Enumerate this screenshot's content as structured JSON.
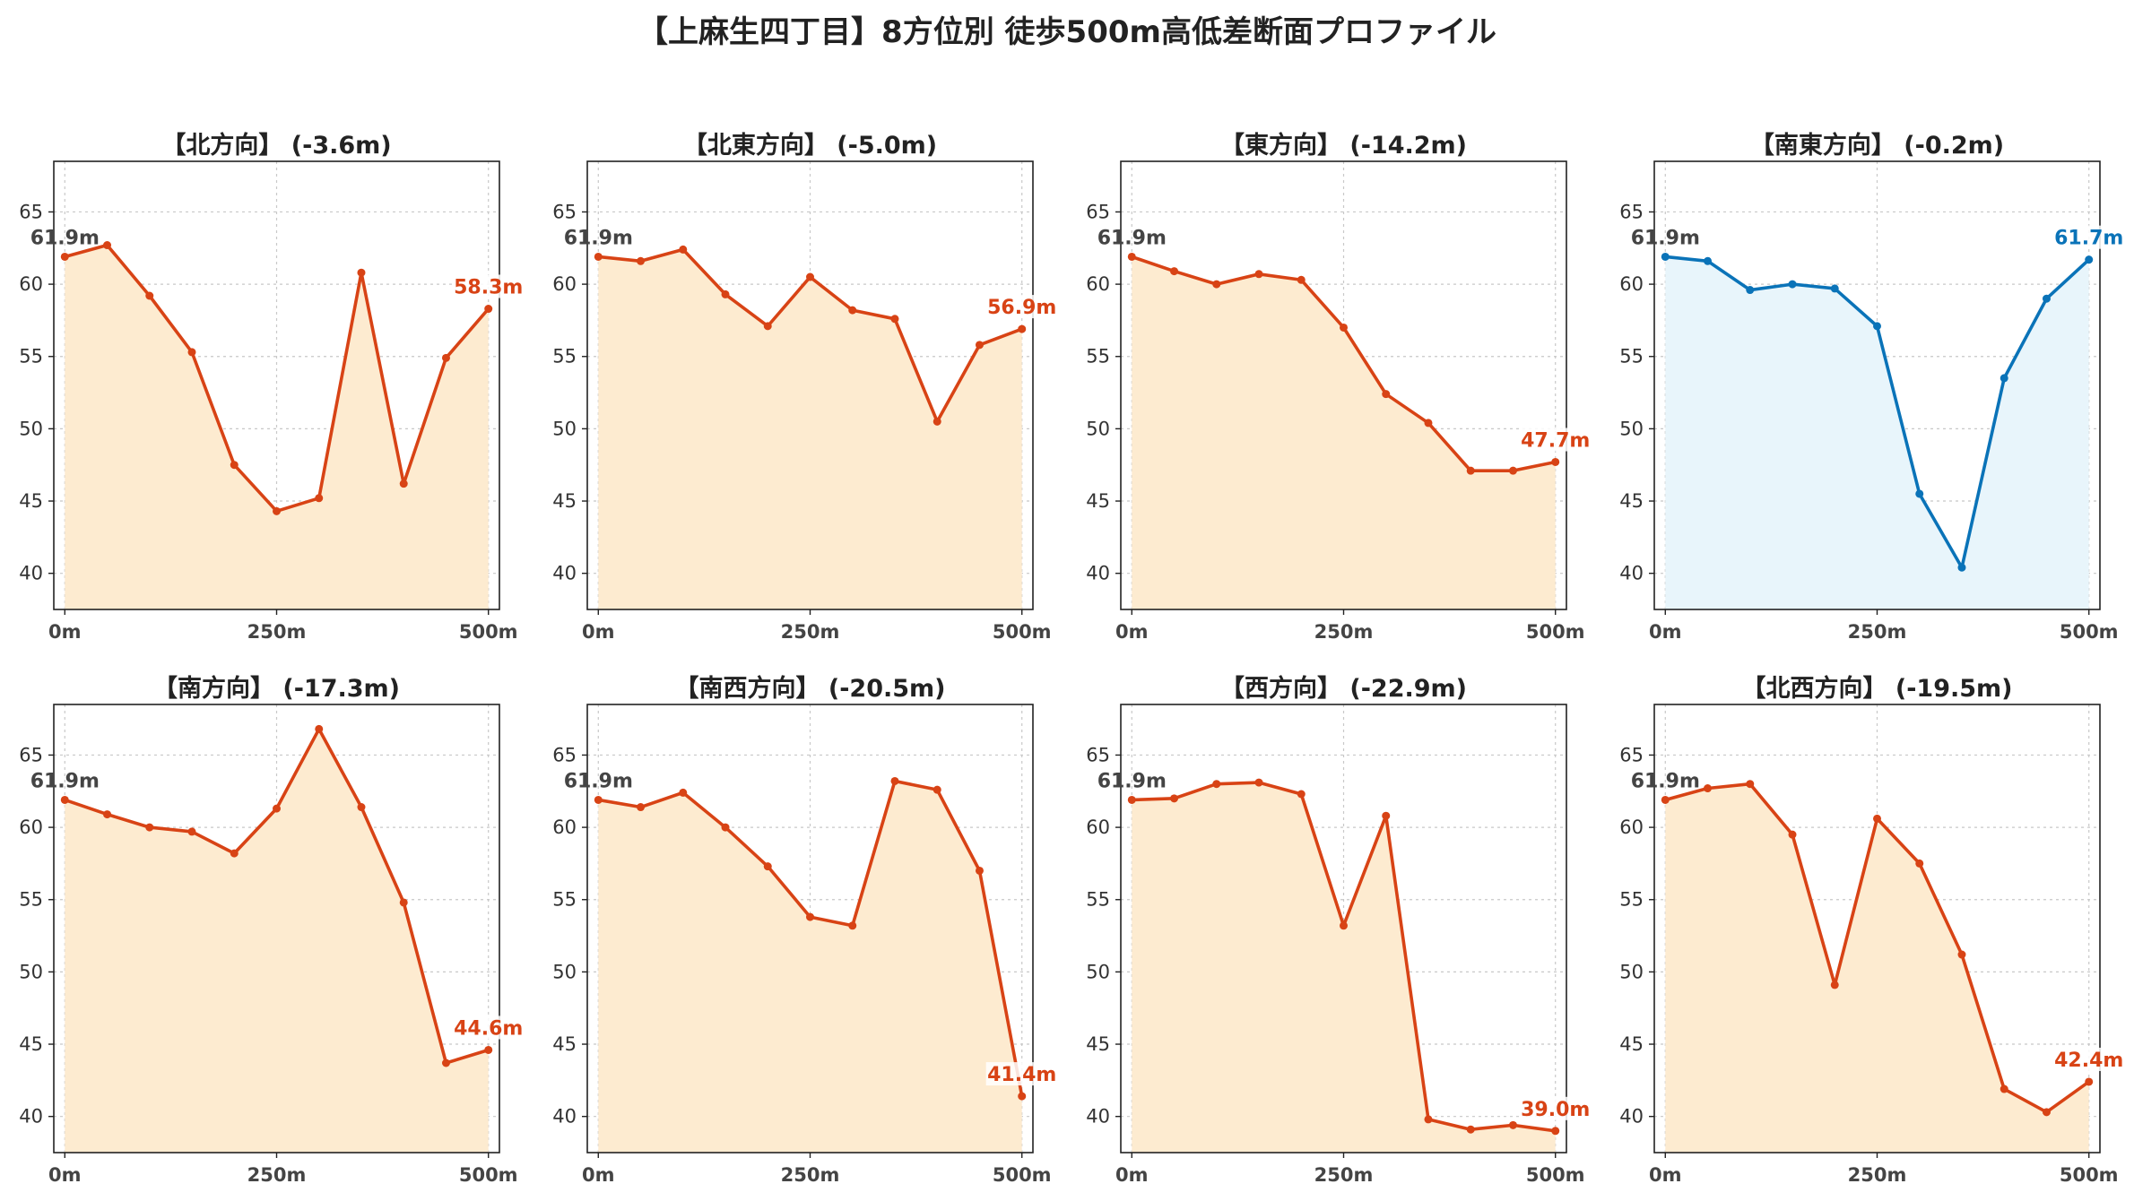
{
  "title": "【上麻生四丁目】8方位別 徒歩500m高低差断面プロファイル",
  "colors": {
    "decline": "#d84315",
    "decline_fill": "#fdebd0",
    "rise": "#0a73b8",
    "rise_fill": "#e8f5fb",
    "start_label": "#444444"
  },
  "chart_data": [
    {
      "type": "line",
      "title": "【北方向】 (-3.6m)",
      "x": [
        0,
        50,
        100,
        150,
        200,
        250,
        300,
        350,
        400,
        450,
        500
      ],
      "values": [
        61.9,
        62.7,
        59.2,
        55.3,
        47.5,
        44.3,
        45.2,
        60.8,
        46.2,
        54.9,
        58.3
      ],
      "start_label": "61.9m",
      "end_label": "58.3m",
      "color": "decline",
      "xticks": [
        "0m",
        "250m",
        "500m"
      ],
      "yticks": [
        40,
        45,
        50,
        55,
        60,
        65
      ],
      "ylim": [
        37.5,
        68.5
      ],
      "grid": true
    },
    {
      "type": "line",
      "title": "【北東方向】 (-5.0m)",
      "x": [
        0,
        50,
        100,
        150,
        200,
        250,
        300,
        350,
        400,
        450,
        500
      ],
      "values": [
        61.9,
        61.6,
        62.4,
        59.3,
        57.1,
        60.5,
        58.2,
        57.6,
        50.5,
        55.8,
        56.9
      ],
      "start_label": "61.9m",
      "end_label": "56.9m",
      "color": "decline",
      "xticks": [
        "0m",
        "250m",
        "500m"
      ],
      "yticks": [
        40,
        45,
        50,
        55,
        60,
        65
      ],
      "ylim": [
        37.5,
        68.5
      ],
      "grid": true
    },
    {
      "type": "line",
      "title": "【東方向】 (-14.2m)",
      "x": [
        0,
        50,
        100,
        150,
        200,
        250,
        300,
        350,
        400,
        450,
        500
      ],
      "values": [
        61.9,
        60.9,
        60.0,
        60.7,
        60.3,
        57.0,
        52.4,
        50.4,
        47.1,
        47.1,
        47.7
      ],
      "start_label": "61.9m",
      "end_label": "47.7m",
      "color": "decline",
      "xticks": [
        "0m",
        "250m",
        "500m"
      ],
      "yticks": [
        40,
        45,
        50,
        55,
        60,
        65
      ],
      "ylim": [
        37.5,
        68.5
      ],
      "grid": true
    },
    {
      "type": "line",
      "title": "【南東方向】 (-0.2m)",
      "x": [
        0,
        50,
        100,
        150,
        200,
        250,
        300,
        350,
        400,
        450,
        500
      ],
      "values": [
        61.9,
        61.6,
        59.6,
        60.0,
        59.7,
        57.1,
        45.5,
        40.4,
        53.5,
        59.0,
        61.7
      ],
      "start_label": "61.9m",
      "end_label": "61.7m",
      "color": "rise",
      "xticks": [
        "0m",
        "250m",
        "500m"
      ],
      "yticks": [
        40,
        45,
        50,
        55,
        60,
        65
      ],
      "ylim": [
        37.5,
        68.5
      ],
      "grid": true
    },
    {
      "type": "line",
      "title": "【南方向】 (-17.3m)",
      "x": [
        0,
        50,
        100,
        150,
        200,
        250,
        300,
        350,
        400,
        450,
        500
      ],
      "values": [
        61.9,
        60.9,
        60.0,
        59.7,
        58.2,
        61.3,
        66.8,
        61.4,
        54.8,
        43.7,
        44.6
      ],
      "start_label": "61.9m",
      "end_label": "44.6m",
      "color": "decline",
      "xticks": [
        "0m",
        "250m",
        "500m"
      ],
      "yticks": [
        40,
        45,
        50,
        55,
        60,
        65
      ],
      "ylim": [
        37.5,
        68.5
      ],
      "grid": true
    },
    {
      "type": "line",
      "title": "【南西方向】 (-20.5m)",
      "x": [
        0,
        50,
        100,
        150,
        200,
        250,
        300,
        350,
        400,
        450,
        500
      ],
      "values": [
        61.9,
        61.4,
        62.4,
        60.0,
        57.3,
        53.8,
        53.2,
        63.2,
        62.6,
        57.0,
        41.4
      ],
      "start_label": "61.9m",
      "end_label": "41.4m",
      "color": "decline",
      "xticks": [
        "0m",
        "250m",
        "500m"
      ],
      "yticks": [
        40,
        45,
        50,
        55,
        60,
        65
      ],
      "ylim": [
        37.5,
        68.5
      ],
      "grid": true
    },
    {
      "type": "line",
      "title": "【西方向】 (-22.9m)",
      "x": [
        0,
        50,
        100,
        150,
        200,
        250,
        300,
        350,
        400,
        450,
        500
      ],
      "values": [
        61.9,
        62.0,
        63.0,
        63.1,
        62.3,
        53.2,
        60.8,
        39.8,
        39.1,
        39.4,
        39.0
      ],
      "start_label": "61.9m",
      "end_label": "39.0m",
      "color": "decline",
      "xticks": [
        "0m",
        "250m",
        "500m"
      ],
      "yticks": [
        40,
        45,
        50,
        55,
        60,
        65
      ],
      "ylim": [
        37.5,
        68.5
      ],
      "grid": true
    },
    {
      "type": "line",
      "title": "【北西方向】 (-19.5m)",
      "x": [
        0,
        50,
        100,
        150,
        200,
        250,
        300,
        350,
        400,
        450,
        500
      ],
      "values": [
        61.9,
        62.7,
        63.0,
        59.5,
        49.1,
        60.6,
        57.5,
        51.2,
        41.9,
        40.3,
        42.4
      ],
      "start_label": "61.9m",
      "end_label": "42.4m",
      "color": "decline",
      "xticks": [
        "0m",
        "250m",
        "500m"
      ],
      "yticks": [
        40,
        45,
        50,
        55,
        60,
        65
      ],
      "ylim": [
        37.5,
        68.5
      ],
      "grid": true
    }
  ]
}
